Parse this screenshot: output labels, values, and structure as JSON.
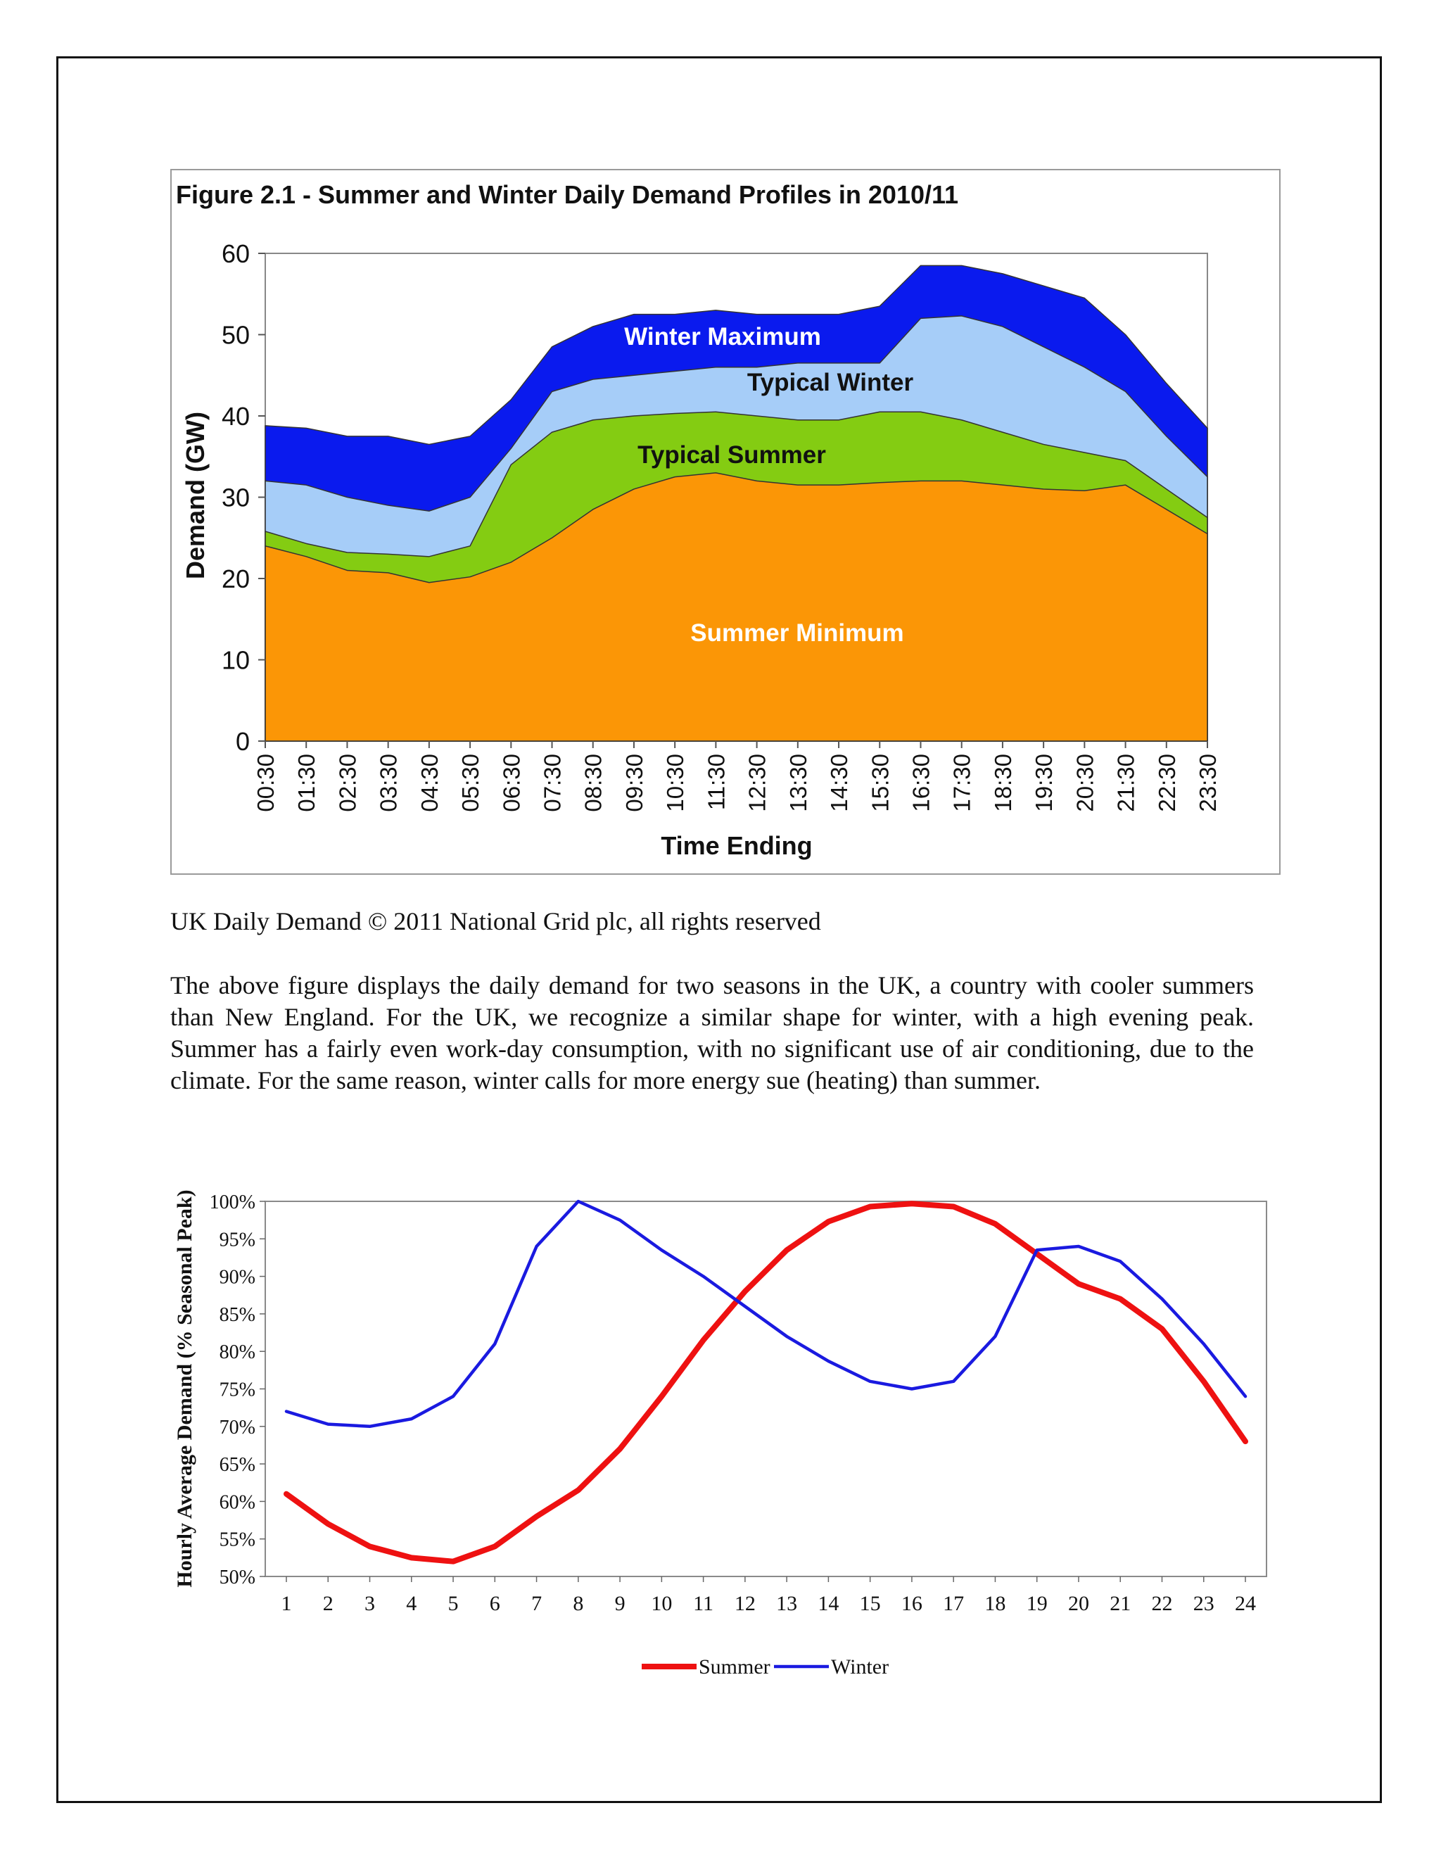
{
  "figure1": {
    "title": "Figure 2.1 - Summer and Winter Daily Demand Profiles in 2010/11",
    "caption": "UK Daily Demand © 2011 National Grid plc, all rights reserved",
    "colors": {
      "winter_maximum": "#0a1aee",
      "typical_winter": "#a6cdf8",
      "typical_summer": "#84cc12",
      "summer_minimum": "#fb9606"
    }
  },
  "paragraph": "The above figure displays the daily demand for two seasons in the UK, a country with cooler summers than New England. For the UK, we recognize a similar shape for winter, with a high evening peak. Summer has a fairly even work-day consumption, with no significant use of air conditioning, due to the climate. For the same reason, winter calls for more energy sue (heating) than summer.",
  "figure2": {
    "colors": {
      "summer": "#ee1111",
      "winter": "#1a1ae0"
    }
  },
  "chart_data": [
    {
      "type": "area",
      "title": "Figure 2.1 - Summer and Winter Daily Demand Profiles in 2010/11",
      "xlabel": "Time Ending",
      "ylabel": "Demand (GW)",
      "ylim": [
        0,
        60
      ],
      "yticks": [
        "0",
        "10",
        "20",
        "30",
        "40",
        "50",
        "60"
      ],
      "categories": [
        "00:30",
        "01:30",
        "02:30",
        "03:30",
        "04:30",
        "05:30",
        "06:30",
        "07:30",
        "08:30",
        "09:30",
        "10:30",
        "11:30",
        "12:30",
        "13:30",
        "14:30",
        "15:30",
        "16:30",
        "17:30",
        "18:30",
        "19:30",
        "20:30",
        "21:30",
        "22:30",
        "23:30"
      ],
      "grid": false,
      "series": [
        {
          "name": "Summer Minimum",
          "values": [
            24.0,
            22.7,
            21.0,
            20.7,
            19.5,
            20.2,
            22.0,
            25.0,
            28.5,
            31.0,
            32.5,
            33.0,
            32.0,
            31.5,
            31.5,
            31.8,
            32.0,
            32.0,
            31.5,
            31.0,
            30.8,
            31.5,
            28.5,
            25.5
          ]
        },
        {
          "name": "Typical Summer",
          "values": [
            25.8,
            24.3,
            23.2,
            23.0,
            22.7,
            24.0,
            34.0,
            38.0,
            39.5,
            40.0,
            40.3,
            40.5,
            40.0,
            39.5,
            39.5,
            40.5,
            40.5,
            39.5,
            38.0,
            36.5,
            35.5,
            34.5,
            31.0,
            27.5
          ]
        },
        {
          "name": "Typical Winter",
          "values": [
            32.0,
            31.5,
            30.0,
            29.0,
            28.3,
            30.0,
            36.0,
            43.0,
            44.5,
            45.0,
            45.5,
            46.0,
            46.0,
            46.5,
            46.5,
            46.5,
            52.0,
            52.3,
            51.0,
            48.5,
            46.0,
            43.0,
            37.5,
            32.5
          ]
        },
        {
          "name": "Winter Maximum",
          "values": [
            38.8,
            38.5,
            37.5,
            37.5,
            36.5,
            37.5,
            42.0,
            48.5,
            51.0,
            52.5,
            52.5,
            53.0,
            52.5,
            52.5,
            52.5,
            53.5,
            58.5,
            58.5,
            57.5,
            56.0,
            54.5,
            50.0,
            44.0,
            38.5
          ]
        }
      ],
      "labels": [
        "Winter Maximum",
        "Typical Winter",
        "Typical Summer",
        "Summer Minimum"
      ]
    },
    {
      "type": "line",
      "xlabel": "",
      "ylabel": "Hourly Average Demand (% Seasonal Peak)",
      "ylim": [
        50,
        100
      ],
      "yticks": [
        "50%",
        "55%",
        "60%",
        "65%",
        "70%",
        "75%",
        "80%",
        "85%",
        "90%",
        "95%",
        "100%"
      ],
      "categories": [
        "1",
        "2",
        "3",
        "4",
        "5",
        "6",
        "7",
        "8",
        "9",
        "10",
        "11",
        "12",
        "13",
        "14",
        "15",
        "16",
        "17",
        "18",
        "19",
        "20",
        "21",
        "22",
        "23",
        "24"
      ],
      "legend": "bottom",
      "series": [
        {
          "name": "Summer",
          "values": [
            61.0,
            57.0,
            54.0,
            52.5,
            52.0,
            54.0,
            58.0,
            61.5,
            67.0,
            74.0,
            81.5,
            88.0,
            93.5,
            97.3,
            99.3,
            99.7,
            99.3,
            97.0,
            93.0,
            89.0,
            87.0,
            83.0,
            76.0,
            68.0
          ]
        },
        {
          "name": "Winter",
          "values": [
            72.0,
            70.3,
            70.0,
            71.0,
            74.0,
            81.0,
            94.0,
            100.0,
            97.5,
            93.5,
            90.0,
            86.0,
            82.0,
            78.7,
            76.0,
            75.0,
            76.0,
            82.0,
            93.5,
            94.0,
            92.0,
            87.0,
            81.0,
            74.0
          ]
        }
      ]
    }
  ]
}
